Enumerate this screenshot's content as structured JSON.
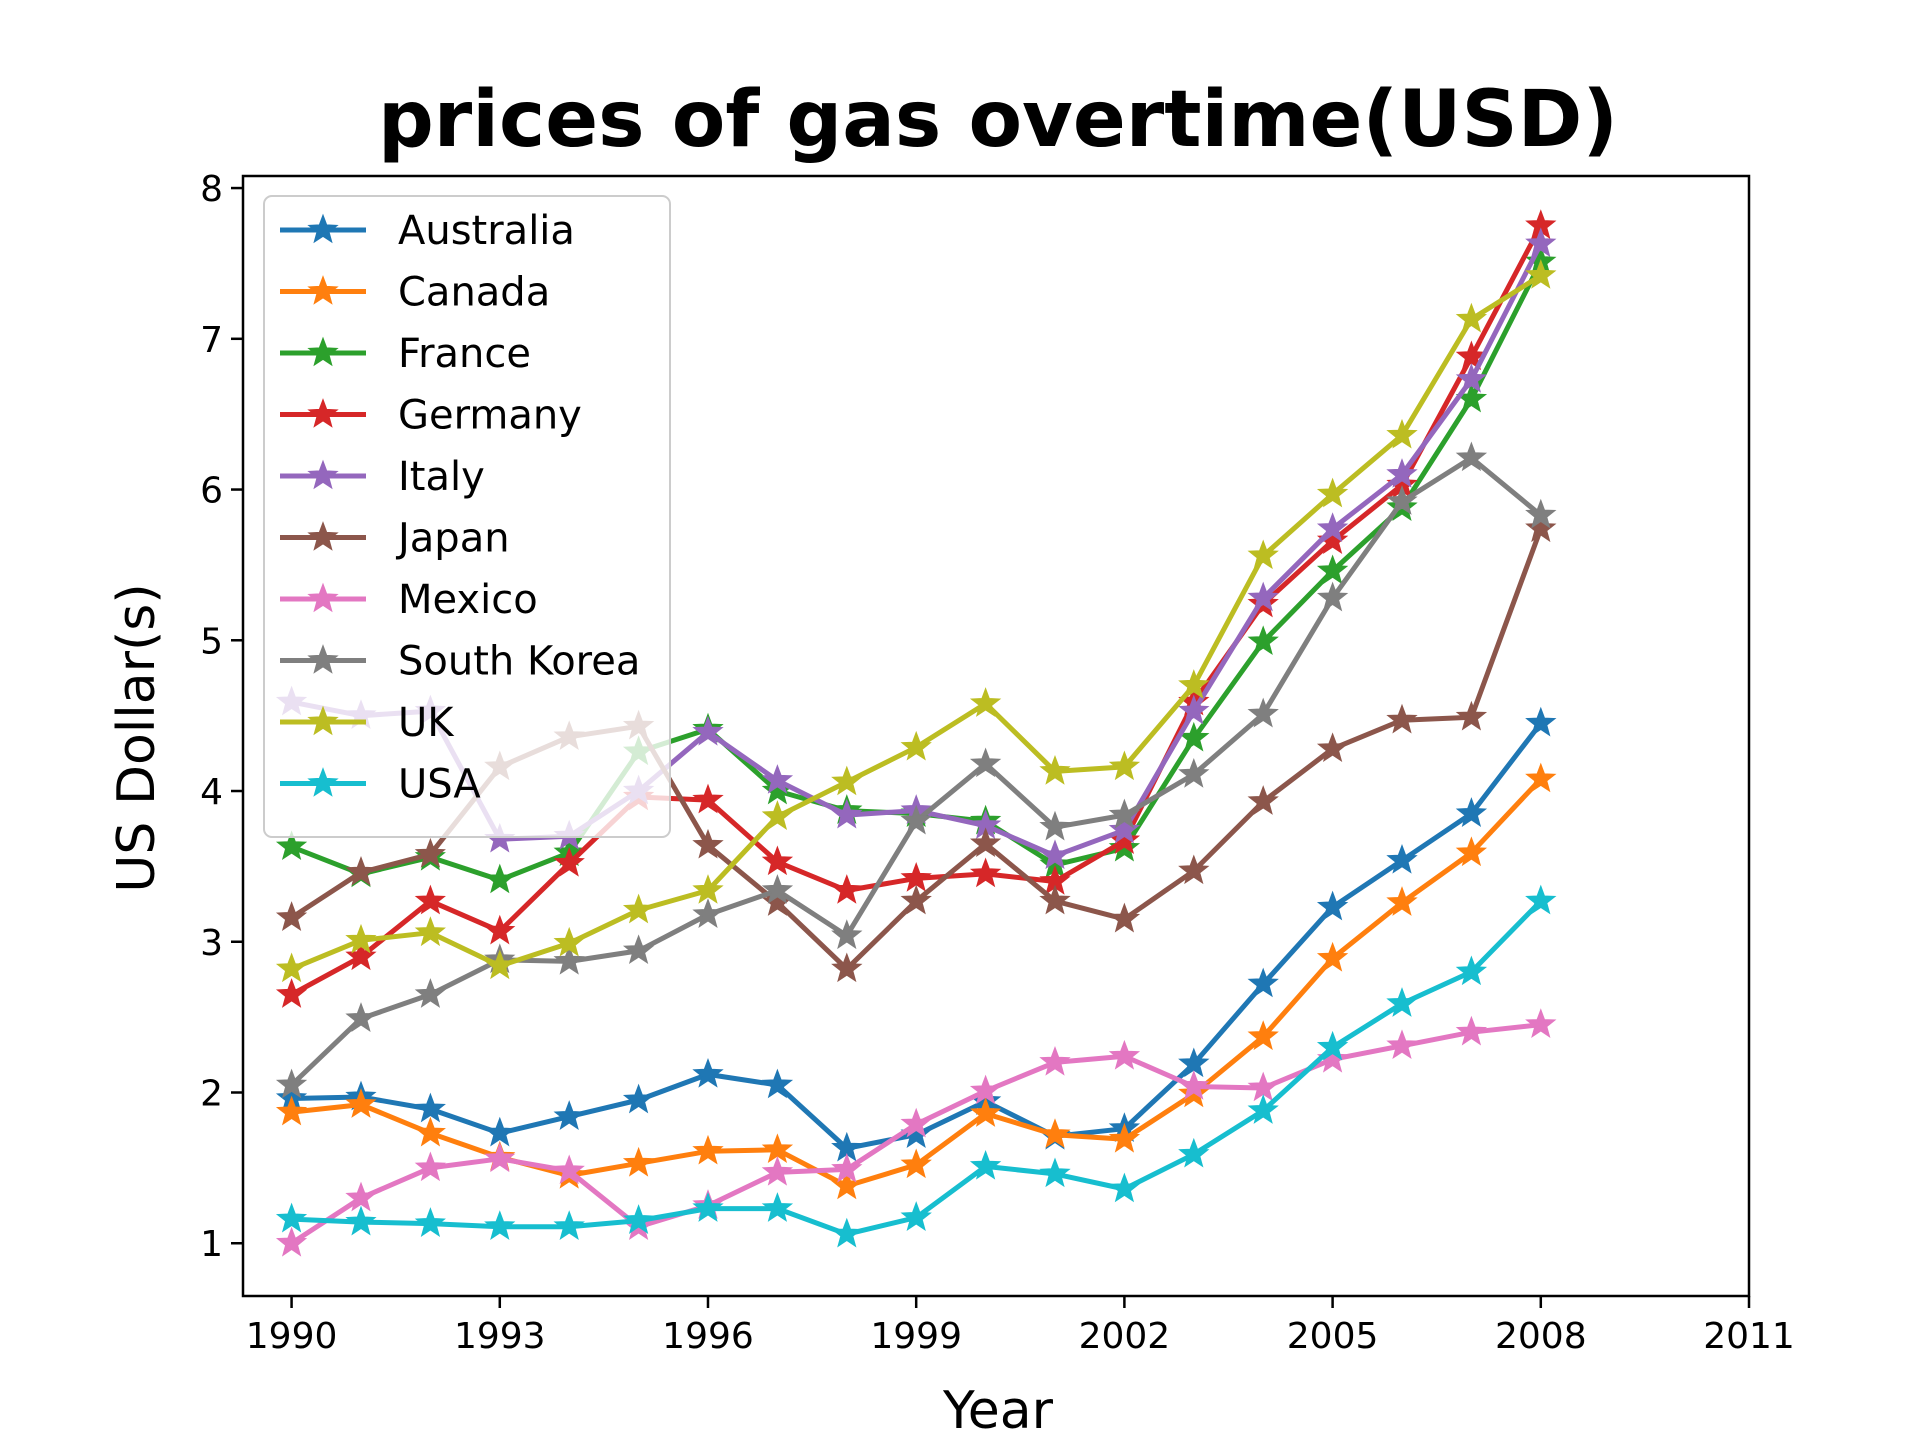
{
  "chart_data": {
    "type": "line",
    "title": "prices of gas overtime(USD)",
    "xlabel": "Year",
    "ylabel": "US Dollar(s)",
    "xlim": [
      1989.3,
      2011.0
    ],
    "ylim": [
      0.65,
      8.08
    ],
    "xticks": [
      1990,
      1993,
      1996,
      1999,
      2002,
      2005,
      2008,
      2011
    ],
    "yticks": [
      1,
      2,
      3,
      4,
      5,
      6,
      7,
      8
    ],
    "grid": false,
    "legend_position": "top-left",
    "marker": "star",
    "x": [
      1990,
      1991,
      1992,
      1993,
      1994,
      1995,
      1996,
      1997,
      1998,
      1999,
      2000,
      2001,
      2002,
      2003,
      2004,
      2005,
      2006,
      2007,
      2008
    ],
    "series": [
      {
        "name": "Australia",
        "color": "#1f77b4",
        "values": [
          1.96,
          1.97,
          1.89,
          1.73,
          1.84,
          1.95,
          2.12,
          2.05,
          1.63,
          1.72,
          1.94,
          1.71,
          1.76,
          2.19,
          2.72,
          3.23,
          3.54,
          3.85,
          4.45
        ]
      },
      {
        "name": "Canada",
        "color": "#ff7f0e",
        "values": [
          1.87,
          1.92,
          1.73,
          1.57,
          1.45,
          1.53,
          1.61,
          1.62,
          1.38,
          1.52,
          1.86,
          1.72,
          1.69,
          1.99,
          2.37,
          2.89,
          3.26,
          3.59,
          4.08
        ]
      },
      {
        "name": "France",
        "color": "#2ca02c",
        "values": [
          3.63,
          3.45,
          3.56,
          3.41,
          3.59,
          4.26,
          4.41,
          4.0,
          3.87,
          3.85,
          3.8,
          3.51,
          3.62,
          4.35,
          4.99,
          5.46,
          5.88,
          6.6,
          7.51
        ]
      },
      {
        "name": "Germany",
        "color": "#d62728",
        "values": [
          2.65,
          2.9,
          3.27,
          3.07,
          3.52,
          3.96,
          3.94,
          3.53,
          3.34,
          3.42,
          3.45,
          3.4,
          3.67,
          4.59,
          5.24,
          5.66,
          6.03,
          6.88,
          7.75
        ]
      },
      {
        "name": "Italy",
        "color": "#9467bd",
        "values": [
          4.59,
          4.5,
          4.53,
          3.68,
          3.7,
          4.0,
          4.39,
          4.07,
          3.84,
          3.87,
          3.77,
          3.57,
          3.74,
          4.53,
          5.28,
          5.74,
          6.1,
          6.73,
          7.63
        ]
      },
      {
        "name": "Japan",
        "color": "#8c564b",
        "values": [
          3.16,
          3.46,
          3.58,
          4.16,
          4.36,
          4.43,
          3.64,
          3.26,
          2.82,
          3.27,
          3.65,
          3.27,
          3.15,
          3.47,
          3.93,
          4.28,
          4.47,
          4.49,
          5.74
        ]
      },
      {
        "name": "Mexico",
        "color": "#e377c2",
        "values": [
          1.0,
          1.3,
          1.5,
          1.56,
          1.48,
          1.11,
          1.25,
          1.47,
          1.49,
          1.79,
          2.01,
          2.2,
          2.24,
          2.04,
          2.03,
          2.22,
          2.31,
          2.4,
          2.45
        ]
      },
      {
        "name": "South Korea",
        "color": "#7f7f7f",
        "values": [
          2.05,
          2.49,
          2.65,
          2.88,
          2.87,
          2.94,
          3.18,
          3.34,
          3.04,
          3.8,
          4.18,
          3.76,
          3.84,
          4.11,
          4.51,
          5.28,
          5.92,
          6.21,
          5.83
        ]
      },
      {
        "name": "UK",
        "color": "#bcbd22",
        "values": [
          2.82,
          3.01,
          3.06,
          2.84,
          2.99,
          3.21,
          3.34,
          3.83,
          4.06,
          4.29,
          4.58,
          4.13,
          4.16,
          4.7,
          5.56,
          5.97,
          6.36,
          7.13,
          7.42
        ]
      },
      {
        "name": "USA",
        "color": "#17becf",
        "values": [
          1.16,
          1.14,
          1.13,
          1.11,
          1.11,
          1.15,
          1.23,
          1.23,
          1.06,
          1.17,
          1.51,
          1.46,
          1.36,
          1.59,
          1.88,
          2.3,
          2.59,
          2.8,
          3.27
        ]
      }
    ]
  }
}
